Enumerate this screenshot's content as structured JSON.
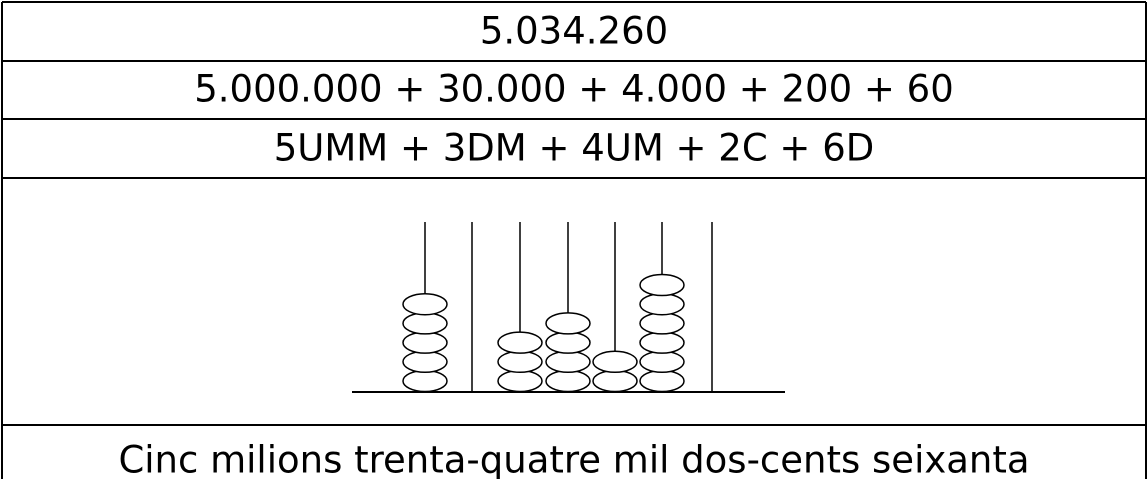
{
  "rows": [
    "5.034.260",
    "5.000.000 + 30.000 + 4.000 + 200 + 60",
    "5UMM + 3DM + 4UM + 2C + 6D"
  ],
  "abacus": {
    "beads": [
      5,
      0,
      3,
      4,
      2,
      6,
      0
    ]
  },
  "words": "Cinc milions trenta-quatre mil dos-cents seixanta"
}
